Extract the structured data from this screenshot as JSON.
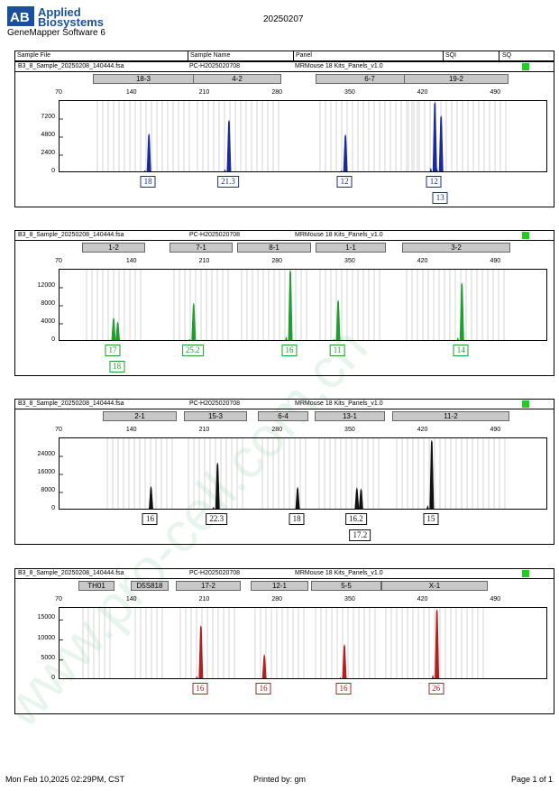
{
  "header": {
    "brand_line1": "Applied",
    "brand_line2": "Biosystems",
    "logo_letters": "AB",
    "software": "GeneMapper Software 6",
    "run_date": "20250207"
  },
  "table_header": {
    "sample_file": "Sample File",
    "sample_name": "Sample Name",
    "panel": "Panel",
    "sqi": "SQI",
    "sq": "SQ"
  },
  "sample_row": {
    "file": "B3_8_Sample_20250208_140444.fsa",
    "name": "PC-H2025020708",
    "panel": "MRMouse 18 Kits_Panels_v1.0",
    "status_color": "#22cc22"
  },
  "watermark": "www.pro-cell.com.cn",
  "footer": {
    "datetime": "Mon Feb 10,2025 02:29PM, CST",
    "printed_by": "Printed by: gm",
    "page": "Page 1 of 1"
  },
  "chart_data": [
    {
      "type": "line",
      "color": "#1a2a9a",
      "x_ticks": [
        "70",
        "140",
        "210",
        "280",
        "350",
        "420",
        "490"
      ],
      "xlim": [
        70,
        540
      ],
      "ylim": [
        0,
        9600
      ],
      "y_ticks": [
        "7200",
        "4800",
        "2400",
        "0"
      ],
      "bins": [
        "18-3",
        "4-2",
        "6-7",
        "19-2"
      ],
      "peaks": [
        {
          "x": 156,
          "y": 5200,
          "label": "18"
        },
        {
          "x": 233,
          "y": 7000,
          "label": "21.3"
        },
        {
          "x": 345,
          "y": 5100,
          "label": "12"
        },
        {
          "x": 431,
          "y": 9400,
          "label": "12"
        },
        {
          "x": 437,
          "y": 7600,
          "label": "13"
        }
      ]
    },
    {
      "type": "line",
      "color": "#1e9e2e",
      "x_ticks": [
        "70",
        "140",
        "210",
        "280",
        "350",
        "420",
        "490"
      ],
      "xlim": [
        70,
        540
      ],
      "ylim": [
        0,
        16000
      ],
      "y_ticks": [
        "12000",
        "8000",
        "4000",
        "0"
      ],
      "bins": [
        "1-2",
        "7-1",
        "8-1",
        "1-1",
        "3-2"
      ],
      "peaks": [
        {
          "x": 122,
          "y": 5300,
          "label": "17"
        },
        {
          "x": 126,
          "y": 4400,
          "label": "18"
        },
        {
          "x": 199,
          "y": 8500,
          "label": "25.2"
        },
        {
          "x": 292,
          "y": 15800,
          "label": "16"
        },
        {
          "x": 338,
          "y": 9200,
          "label": "11"
        },
        {
          "x": 457,
          "y": 13000,
          "label": "14"
        }
      ]
    },
    {
      "type": "line",
      "color": "#111111",
      "x_ticks": [
        "70",
        "140",
        "210",
        "280",
        "350",
        "420",
        "490"
      ],
      "xlim": [
        70,
        540
      ],
      "ylim": [
        0,
        32000
      ],
      "y_ticks": [
        "24000",
        "16000",
        "8000",
        "0"
      ],
      "bins": [
        "2-1",
        "15-3",
        "6-4",
        "13-1",
        "11-2"
      ],
      "peaks": [
        {
          "x": 158,
          "y": 10500,
          "label": "16"
        },
        {
          "x": 222,
          "y": 21000,
          "label": "22.3"
        },
        {
          "x": 299,
          "y": 10200,
          "label": "18"
        },
        {
          "x": 356,
          "y": 10000,
          "label": "16.2"
        },
        {
          "x": 360,
          "y": 9500,
          "label": "17.2"
        },
        {
          "x": 428,
          "y": 31000,
          "label": "15"
        }
      ]
    },
    {
      "type": "line",
      "color": "#b02020",
      "x_ticks": [
        "70",
        "140",
        "210",
        "280",
        "350",
        "420",
        "490"
      ],
      "xlim": [
        70,
        540
      ],
      "ylim": [
        0,
        18000
      ],
      "y_ticks": [
        "15000",
        "10000",
        "5000",
        "0"
      ],
      "bins": [
        "TH01",
        "D5S818",
        "17-2",
        "12-1",
        "5-5",
        "X-1"
      ],
      "peaks": [
        {
          "x": 206,
          "y": 13500,
          "label": "16"
        },
        {
          "x": 267,
          "y": 6300,
          "label": "16"
        },
        {
          "x": 344,
          "y": 8800,
          "label": "16"
        },
        {
          "x": 433,
          "y": 17500,
          "label": "26"
        }
      ]
    }
  ]
}
